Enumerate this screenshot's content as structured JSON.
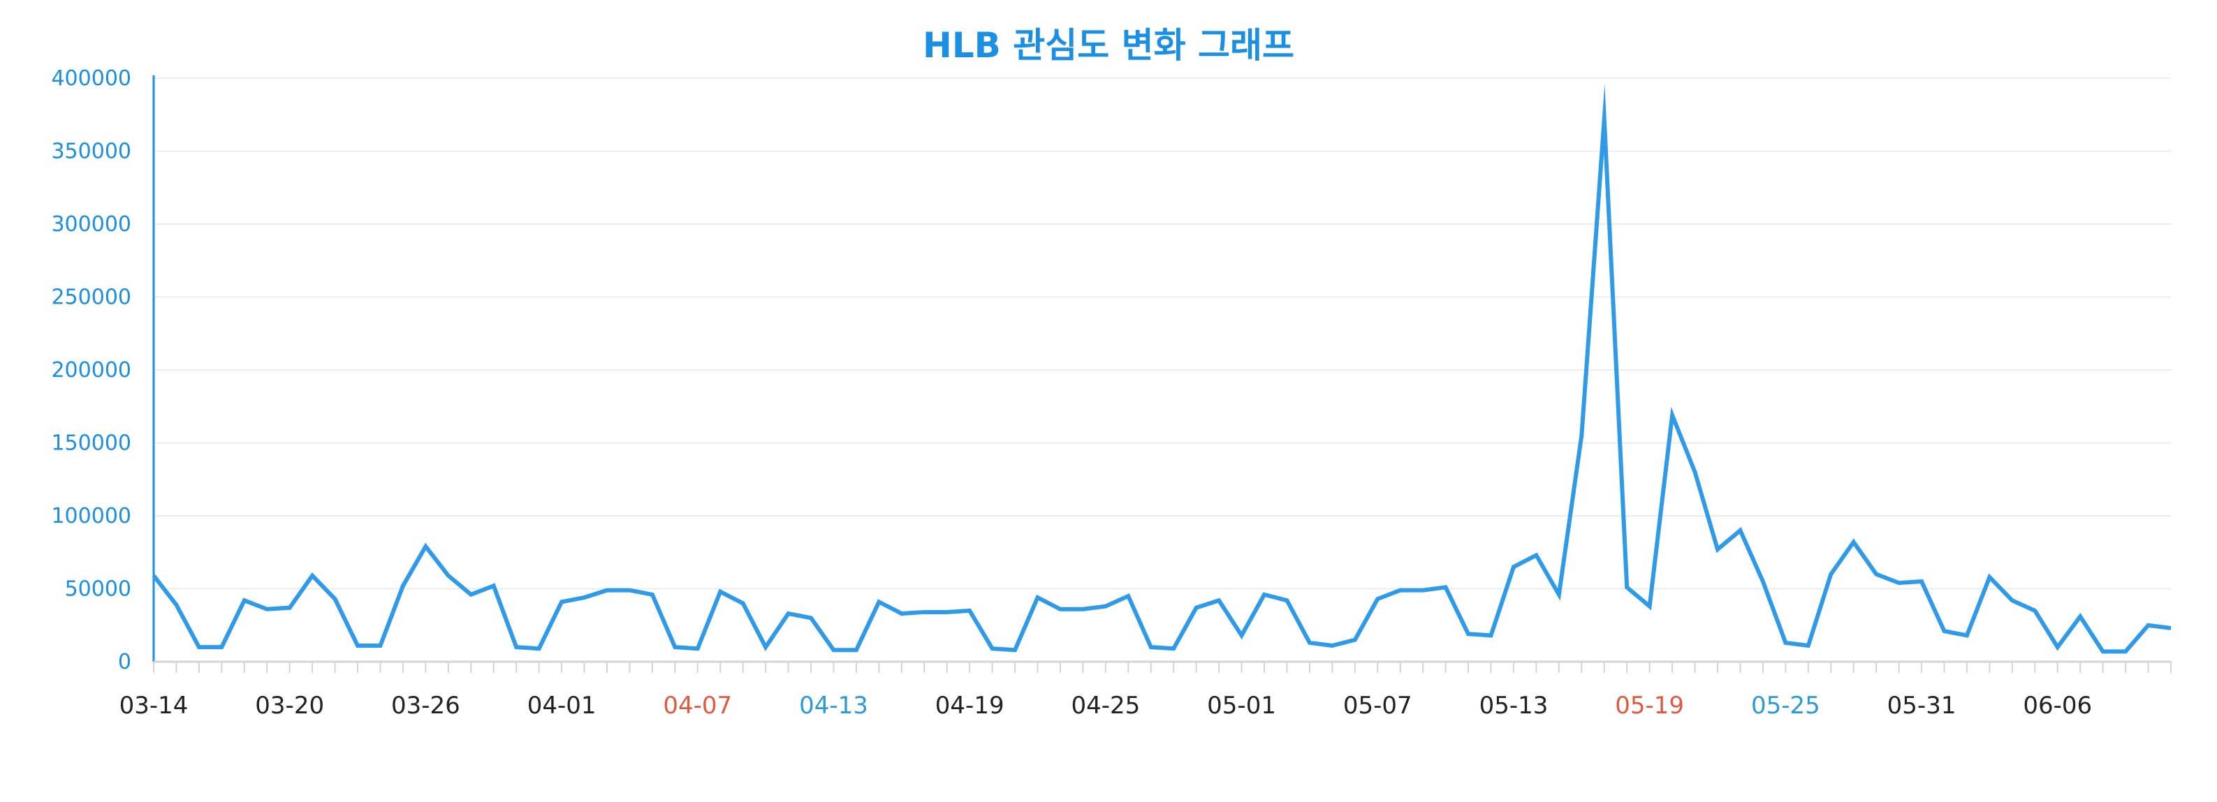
{
  "colors": {
    "title": "#1a8fe3",
    "line": "#2f9be8",
    "axis": "#1a8fe3",
    "ytick": "#1a8fe3",
    "grid": "#ececec",
    "xtick_default": "#222222",
    "xtick_red": "#e0593f",
    "xtick_blue": "#2b9bd8"
  },
  "chart_data": {
    "type": "line",
    "title": "HLB 관심도 변화 그래프",
    "xlabel": "",
    "ylabel": "",
    "ylim": [
      0,
      400000
    ],
    "grid": true,
    "y_ticks": [
      "0",
      "50000",
      "100000",
      "150000",
      "200000",
      "250000",
      "300000",
      "350000",
      "400000"
    ],
    "x": [
      "03-14",
      "03-15",
      "03-16",
      "03-17",
      "03-18",
      "03-19",
      "03-20",
      "03-21",
      "03-22",
      "03-23",
      "03-24",
      "03-25",
      "03-26",
      "03-27",
      "03-28",
      "03-29",
      "03-30",
      "03-31",
      "04-01",
      "04-02",
      "04-03",
      "04-04",
      "04-05",
      "04-06",
      "04-07",
      "04-08",
      "04-09",
      "04-10",
      "04-11",
      "04-12",
      "04-13",
      "04-14",
      "04-15",
      "04-16",
      "04-17",
      "04-18",
      "04-19",
      "04-20",
      "04-21",
      "04-22",
      "04-23",
      "04-24",
      "04-25",
      "04-26",
      "04-27",
      "04-28",
      "04-29",
      "04-30",
      "05-01",
      "05-02",
      "05-03",
      "05-04",
      "05-05",
      "05-06",
      "05-07",
      "05-08",
      "05-09",
      "05-10",
      "05-11",
      "05-12",
      "05-13",
      "05-14",
      "05-15",
      "05-16",
      "05-17",
      "05-18",
      "05-19",
      "05-20",
      "05-21",
      "05-22",
      "05-23",
      "05-24",
      "05-25",
      "05-26",
      "05-27",
      "05-28",
      "05-29",
      "05-30",
      "05-31",
      "06-01",
      "06-02",
      "06-03",
      "06-04",
      "06-05",
      "06-06",
      "06-07",
      "06-08",
      "06-09",
      "06-10",
      "06-11"
    ],
    "x_tick_labels": [
      {
        "label": "03-14",
        "color": "default"
      },
      {
        "label": "03-20",
        "color": "default"
      },
      {
        "label": "03-26",
        "color": "default"
      },
      {
        "label": "04-01",
        "color": "default"
      },
      {
        "label": "04-07",
        "color": "red"
      },
      {
        "label": "04-13",
        "color": "blue"
      },
      {
        "label": "04-19",
        "color": "default"
      },
      {
        "label": "04-25",
        "color": "default"
      },
      {
        "label": "05-01",
        "color": "default"
      },
      {
        "label": "05-07",
        "color": "default"
      },
      {
        "label": "05-13",
        "color": "default"
      },
      {
        "label": "05-19",
        "color": "red"
      },
      {
        "label": "05-25",
        "color": "blue"
      },
      {
        "label": "05-31",
        "color": "default"
      },
      {
        "label": "06-06",
        "color": "default"
      }
    ],
    "series": [
      {
        "values": [
          59000,
          39000,
          10000,
          10000,
          42000,
          36000,
          37000,
          59000,
          43000,
          11000,
          11000,
          52000,
          79000,
          59000,
          46000,
          52000,
          10000,
          9000,
          41000,
          44000,
          49000,
          49000,
          46000,
          10000,
          9000,
          48000,
          40000,
          10000,
          33000,
          30000,
          8000,
          8000,
          41000,
          33000,
          34000,
          34000,
          35000,
          9000,
          8000,
          44000,
          36000,
          36000,
          38000,
          45000,
          10000,
          9000,
          37000,
          42000,
          18000,
          46000,
          42000,
          13000,
          11000,
          15000,
          43000,
          49000,
          49000,
          51000,
          19000,
          18000,
          65000,
          73000,
          46000,
          155000,
          372000,
          51000,
          38000,
          169000,
          130000,
          77000,
          90000,
          55000,
          13000,
          11000,
          60000,
          82000,
          60000,
          54000,
          55000,
          21000,
          18000,
          58000,
          42000,
          35000,
          10000,
          31000,
          7000,
          7000,
          25000,
          23000
        ]
      }
    ]
  }
}
